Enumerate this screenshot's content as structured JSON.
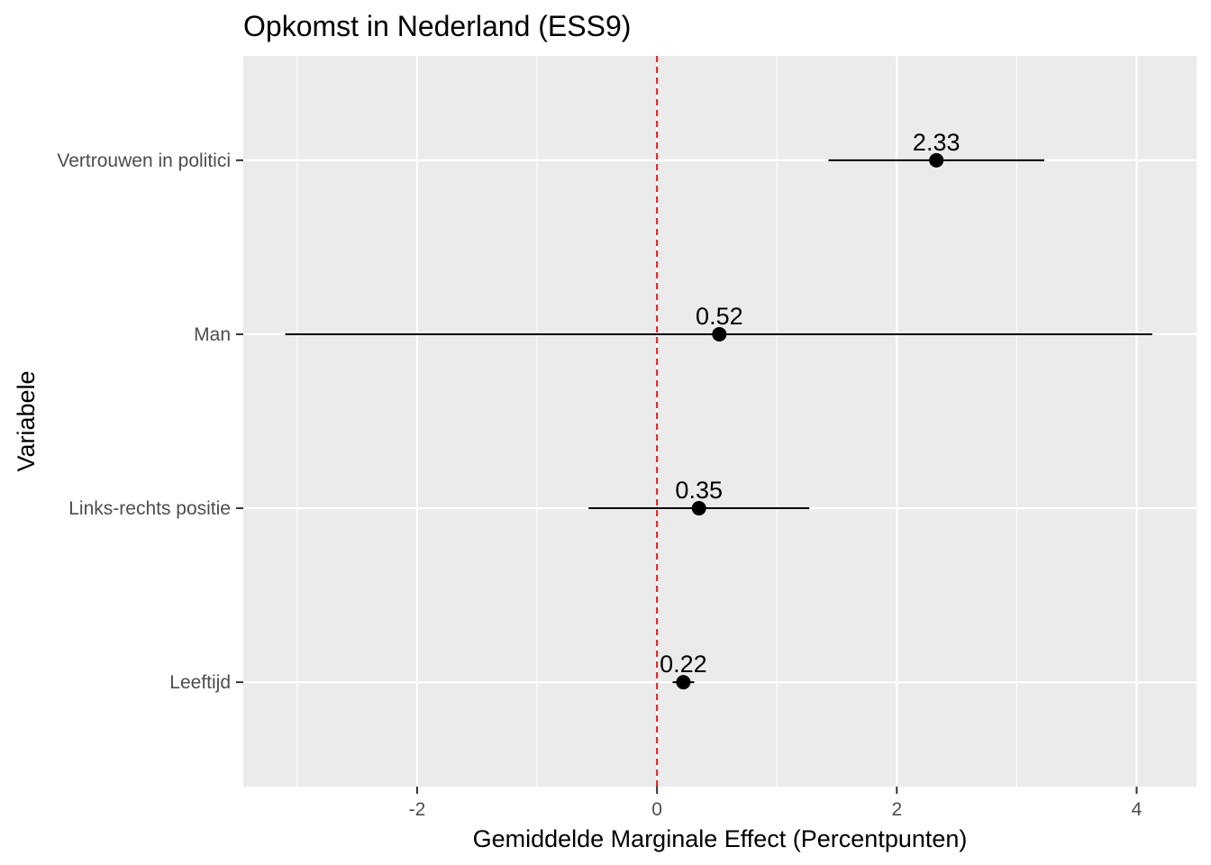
{
  "chart_data": {
    "type": "scatter",
    "subtype": "coefficient-plot",
    "title": "Opkomst in Nederland (ESS9)",
    "xlabel": "Gemiddelde Marginale Effect (Percentpunten)",
    "ylabel": "Variabele",
    "xlim": [
      -3.45,
      4.5
    ],
    "x_ticks": [
      -2,
      0,
      2,
      4
    ],
    "x_tick_labels": [
      "-2",
      "0",
      "2",
      "4"
    ],
    "reference_line": {
      "x": 0,
      "style": "dashed",
      "color": "#e31a1c"
    },
    "categories": [
      "Vertrouwen in politici",
      "Man",
      "Links-rechts positie",
      "Leeftijd"
    ],
    "estimates": [
      2.33,
      0.52,
      0.35,
      0.22
    ],
    "lower": [
      1.43,
      -3.1,
      -0.57,
      0.13
    ],
    "upper": [
      3.23,
      4.13,
      1.27,
      0.31
    ],
    "labels": [
      "2.33",
      "0.52",
      "0.35",
      "0.22"
    ],
    "grid": true,
    "panel_background": "#ebebeb",
    "grid_color": "#ffffff",
    "point_color": "#000000"
  }
}
